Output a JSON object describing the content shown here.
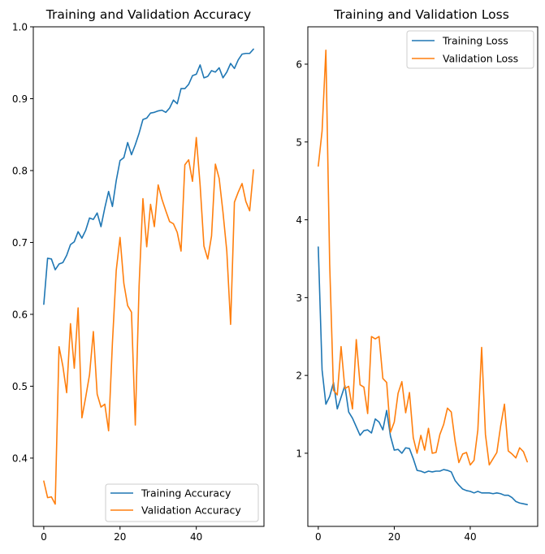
{
  "chart_data": [
    {
      "type": "line",
      "title": "Training and Validation Accuracy",
      "xlabel": "",
      "ylabel": "",
      "xlim": [
        -2.75,
        57.75
      ],
      "ylim": [
        0.305,
        1.0
      ],
      "xticks": [
        0,
        20,
        40
      ],
      "yticks": [
        0.4,
        0.5,
        0.6,
        0.7,
        0.8,
        0.9,
        1.0
      ],
      "ytick_labels": [
        "0.4",
        "0.5",
        "0.6",
        "0.7",
        "0.8",
        "0.9",
        "1.0"
      ],
      "grid": false,
      "legend_position": "lower-right",
      "x": [
        0,
        1,
        2,
        3,
        4,
        5,
        6,
        7,
        8,
        9,
        10,
        11,
        12,
        13,
        14,
        15,
        16,
        17,
        18,
        19,
        20,
        21,
        22,
        23,
        24,
        25,
        26,
        27,
        28,
        29,
        30,
        31,
        32,
        33,
        34,
        35,
        36,
        37,
        38,
        39,
        40,
        41,
        42,
        43,
        44,
        45,
        46,
        47,
        48,
        49,
        50,
        51,
        52,
        53,
        54,
        55
      ],
      "series": [
        {
          "name": "Training Accuracy",
          "color": "#1f77b4",
          "values": [
            0.614,
            0.678,
            0.677,
            0.662,
            0.67,
            0.672,
            0.682,
            0.697,
            0.701,
            0.715,
            0.706,
            0.717,
            0.734,
            0.732,
            0.741,
            0.722,
            0.748,
            0.771,
            0.75,
            0.786,
            0.814,
            0.818,
            0.839,
            0.822,
            0.836,
            0.852,
            0.871,
            0.873,
            0.88,
            0.881,
            0.883,
            0.884,
            0.881,
            0.887,
            0.898,
            0.893,
            0.914,
            0.914,
            0.92,
            0.932,
            0.934,
            0.947,
            0.929,
            0.931,
            0.939,
            0.937,
            0.943,
            0.929,
            0.937,
            0.949,
            0.942,
            0.954,
            0.962,
            0.963,
            0.963,
            0.969
          ]
        },
        {
          "name": "Validation Accuracy",
          "color": "#ff7f0e",
          "values": [
            0.368,
            0.345,
            0.346,
            0.336,
            0.555,
            0.528,
            0.491,
            0.587,
            0.525,
            0.609,
            0.456,
            0.485,
            0.516,
            0.576,
            0.489,
            0.471,
            0.475,
            0.438,
            0.56,
            0.661,
            0.707,
            0.643,
            0.612,
            0.603,
            0.446,
            0.64,
            0.761,
            0.694,
            0.753,
            0.722,
            0.78,
            0.76,
            0.744,
            0.729,
            0.726,
            0.714,
            0.688,
            0.808,
            0.815,
            0.785,
            0.846,
            0.78,
            0.695,
            0.677,
            0.709,
            0.809,
            0.789,
            0.742,
            0.688,
            0.586,
            0.756,
            0.77,
            0.782,
            0.757,
            0.744,
            0.801
          ]
        }
      ]
    },
    {
      "type": "line",
      "title": "Training and Validation Loss",
      "xlabel": "",
      "ylabel": "",
      "xlim": [
        -2.75,
        57.75
      ],
      "ylim": [
        0.06,
        6.48
      ],
      "xticks": [
        0,
        20,
        40
      ],
      "yticks": [
        1,
        2,
        3,
        4,
        5,
        6
      ],
      "ytick_labels": [
        "1",
        "2",
        "3",
        "4",
        "5",
        "6"
      ],
      "grid": false,
      "legend_position": "upper-right",
      "x": [
        0,
        1,
        2,
        3,
        4,
        5,
        6,
        7,
        8,
        9,
        10,
        11,
        12,
        13,
        14,
        15,
        16,
        17,
        18,
        19,
        20,
        21,
        22,
        23,
        24,
        25,
        26,
        27,
        28,
        29,
        30,
        31,
        32,
        33,
        34,
        35,
        36,
        37,
        38,
        39,
        40,
        41,
        42,
        43,
        44,
        45,
        46,
        47,
        48,
        49,
        50,
        51,
        52,
        53,
        54,
        55
      ],
      "series": [
        {
          "name": "Training Loss",
          "color": "#1f77b4",
          "values": [
            3.65,
            2.07,
            1.63,
            1.73,
            1.91,
            1.57,
            1.72,
            1.87,
            1.53,
            1.45,
            1.34,
            1.23,
            1.29,
            1.3,
            1.26,
            1.44,
            1.4,
            1.3,
            1.55,
            1.22,
            1.04,
            1.05,
            1.0,
            1.07,
            1.06,
            0.93,
            0.78,
            0.77,
            0.75,
            0.77,
            0.76,
            0.77,
            0.77,
            0.79,
            0.78,
            0.76,
            0.65,
            0.59,
            0.54,
            0.52,
            0.51,
            0.49,
            0.51,
            0.49,
            0.49,
            0.49,
            0.48,
            0.49,
            0.48,
            0.46,
            0.46,
            0.43,
            0.38,
            0.36,
            0.35,
            0.34
          ]
        },
        {
          "name": "Validation Loss",
          "color": "#ff7f0e",
          "values": [
            4.69,
            5.14,
            6.18,
            3.43,
            1.81,
            1.75,
            2.37,
            1.83,
            1.86,
            1.57,
            2.46,
            1.88,
            1.85,
            1.51,
            2.5,
            2.47,
            2.5,
            1.96,
            1.91,
            1.27,
            1.4,
            1.77,
            1.92,
            1.52,
            1.78,
            1.2,
            1.0,
            1.23,
            1.04,
            1.32,
            1.0,
            1.01,
            1.24,
            1.37,
            1.58,
            1.53,
            1.16,
            0.88,
            0.99,
            1.01,
            0.85,
            0.91,
            1.3,
            2.36,
            1.24,
            0.85,
            0.93,
            1.01,
            1.35,
            1.63,
            1.03,
            0.99,
            0.94,
            1.07,
            1.02,
            0.89
          ]
        }
      ]
    }
  ]
}
